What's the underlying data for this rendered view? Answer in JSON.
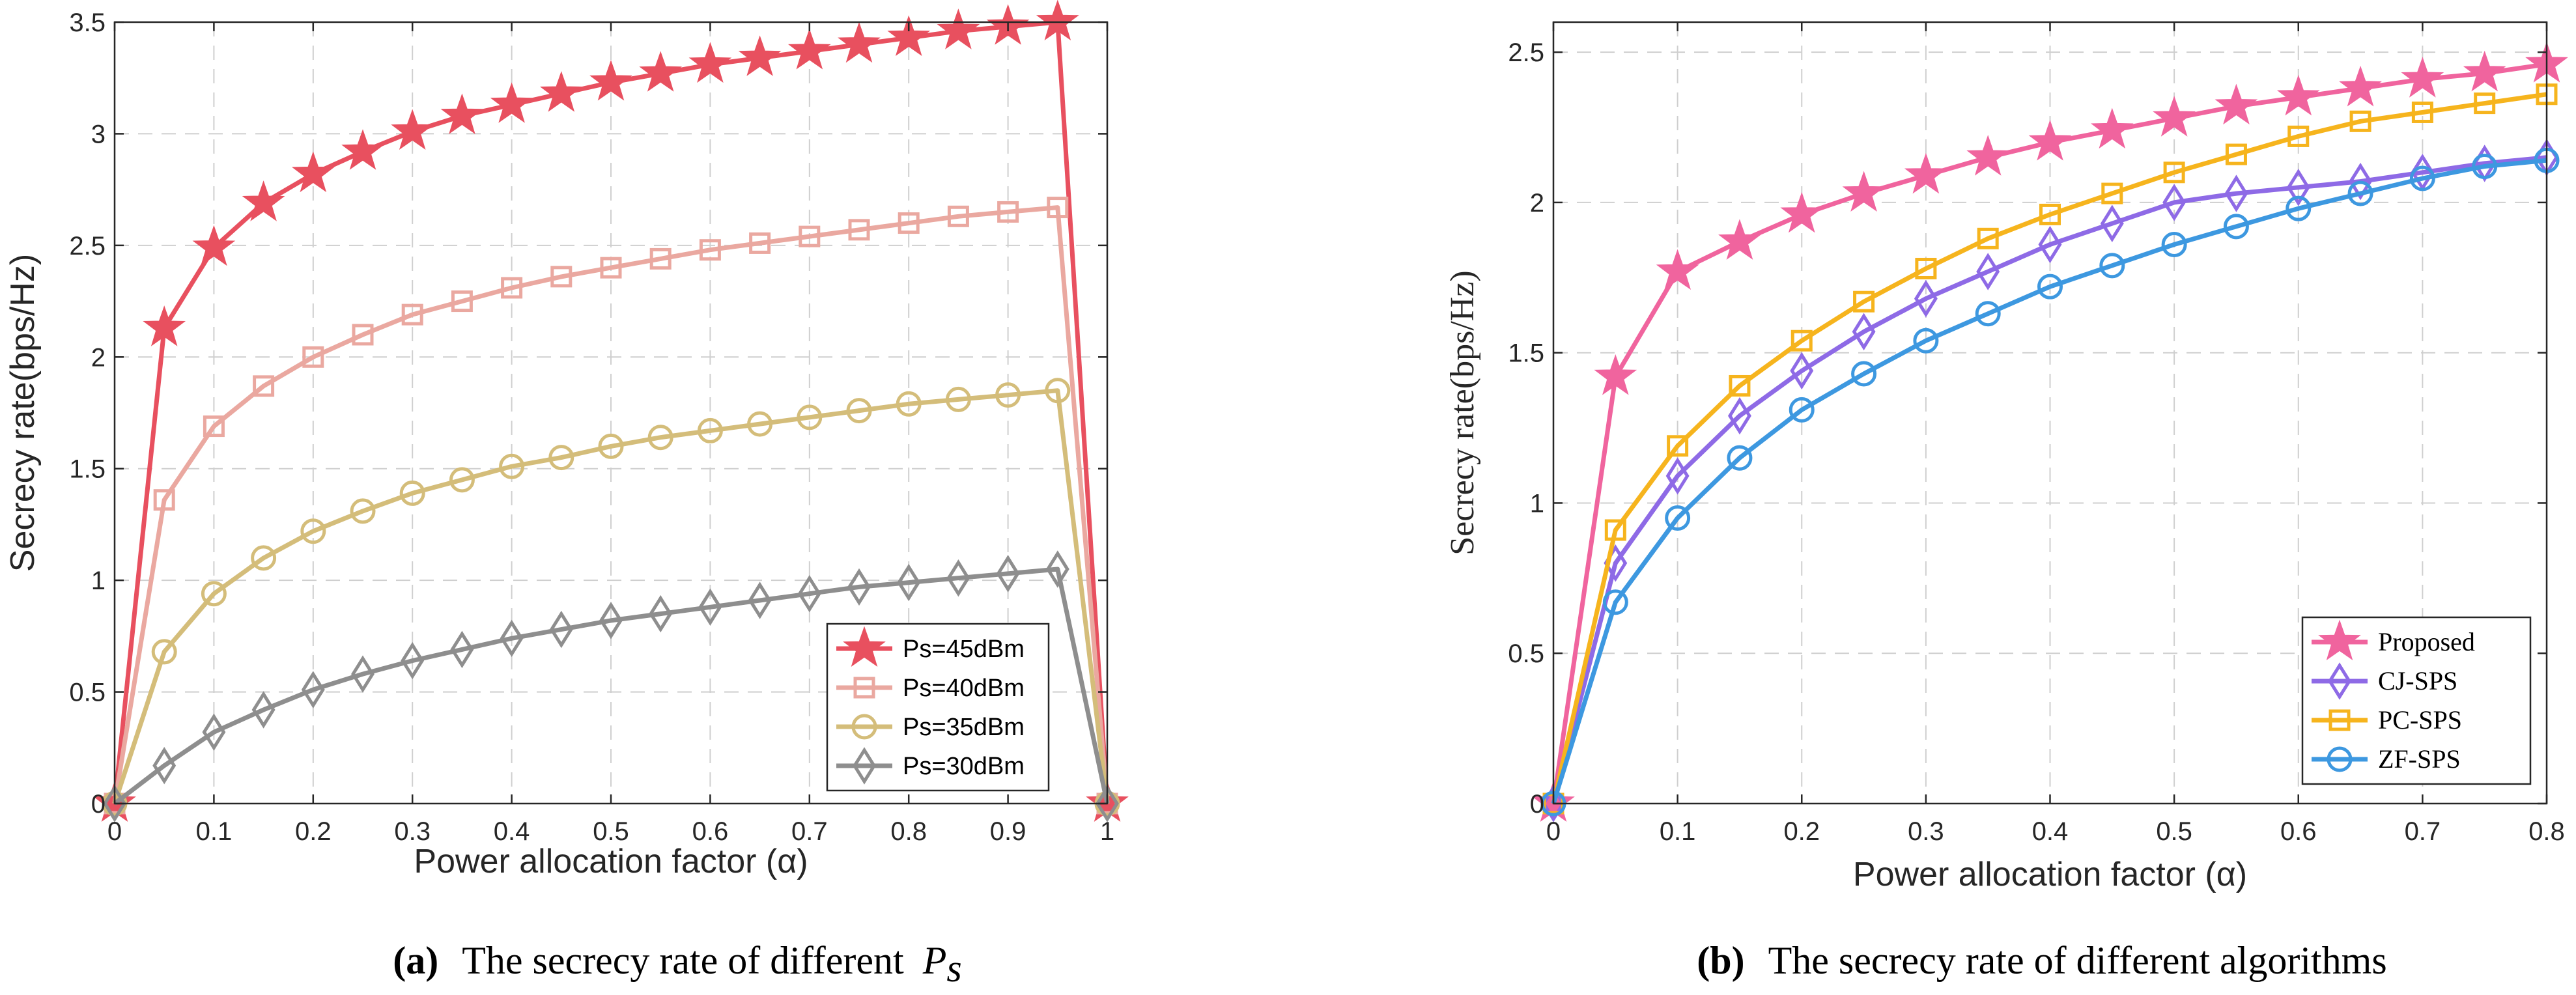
{
  "chart_data": [
    {
      "type": "line",
      "caption": {
        "label": "(a)",
        "text": "The secrecy rate of different",
        "math": "P",
        "math_sub": "s"
      },
      "xlabel": "Power allocation factor (α)",
      "ylabel": "Secrecy rate(bps/Hz)",
      "xlim": [
        0,
        1
      ],
      "ylim": [
        0,
        3.5
      ],
      "xticks": [
        0,
        0.1,
        0.2,
        0.3,
        0.4,
        0.5,
        0.6,
        0.7,
        0.8,
        0.9,
        1
      ],
      "xtick_labels": [
        "0",
        "0.1",
        "0.2",
        "0.3",
        "0.4",
        "0.5",
        "0.6",
        "0.7",
        "0.8",
        "0.9",
        "1"
      ],
      "yticks": [
        0,
        0.5,
        1,
        1.5,
        2,
        2.5,
        3,
        3.5
      ],
      "ytick_labels": [
        "0",
        "0.5",
        "1",
        "1.5",
        "2",
        "2.5",
        "3",
        "3.5"
      ],
      "grid": true,
      "legend_position": "bottom-right",
      "x": [
        0,
        0.05,
        0.1,
        0.15,
        0.2,
        0.25,
        0.3,
        0.35,
        0.4,
        0.45,
        0.5,
        0.55,
        0.6,
        0.65,
        0.7,
        0.75,
        0.8,
        0.85,
        0.9,
        0.95,
        1
      ],
      "series": [
        {
          "name": "Ps=45dBm",
          "marker": "star",
          "color": "#E8505F",
          "marker_fill": "#E8505F",
          "values": [
            0,
            2.13,
            2.49,
            2.69,
            2.82,
            2.92,
            3.01,
            3.08,
            3.13,
            3.18,
            3.23,
            3.27,
            3.31,
            3.34,
            3.37,
            3.4,
            3.43,
            3.46,
            3.48,
            3.5,
            0
          ]
        },
        {
          "name": "Ps=40dBm",
          "marker": "square",
          "color": "#EAA8A0",
          "marker_fill": "none",
          "values": [
            0,
            1.36,
            1.69,
            1.87,
            2.0,
            2.1,
            2.19,
            2.25,
            2.31,
            2.36,
            2.4,
            2.44,
            2.48,
            2.51,
            2.54,
            2.57,
            2.6,
            2.63,
            2.65,
            2.67,
            0
          ]
        },
        {
          "name": "Ps=35dBm",
          "marker": "circle",
          "color": "#D4BD7A",
          "marker_fill": "none",
          "values": [
            0,
            0.68,
            0.94,
            1.1,
            1.22,
            1.31,
            1.39,
            1.45,
            1.51,
            1.55,
            1.6,
            1.64,
            1.67,
            1.7,
            1.73,
            1.76,
            1.79,
            1.81,
            1.83,
            1.85,
            0
          ]
        },
        {
          "name": "Ps=30dBm",
          "marker": "diamond",
          "color": "#8E8E8E",
          "marker_fill": "none",
          "values": [
            0,
            0.17,
            0.32,
            0.42,
            0.51,
            0.58,
            0.64,
            0.69,
            0.74,
            0.78,
            0.82,
            0.85,
            0.88,
            0.91,
            0.94,
            0.97,
            0.99,
            1.01,
            1.03,
            1.05,
            0
          ]
        }
      ]
    },
    {
      "type": "line",
      "caption": {
        "label": "(b)",
        "text": "The secrecy rate of different algorithms"
      },
      "xlabel": "Power allocation factor (α)",
      "ylabel": "Secrecy rate(bps/Hz)",
      "xlim": [
        0,
        0.8
      ],
      "ylim": [
        0,
        2.6
      ],
      "xticks": [
        0,
        0.1,
        0.2,
        0.3,
        0.4,
        0.5,
        0.6,
        0.7,
        0.8
      ],
      "xtick_labels": [
        "0",
        "0.1",
        "0.2",
        "0.3",
        "0.4",
        "0.5",
        "0.6",
        "0.7",
        "0.8"
      ],
      "yticks": [
        0,
        0.5,
        1,
        1.5,
        2,
        2.5
      ],
      "ytick_labels": [
        "0",
        "0.5",
        "1",
        "1.5",
        "2",
        "2.5"
      ],
      "grid": true,
      "legend_position": "bottom-right",
      "x": [
        0,
        0.05,
        0.1,
        0.15,
        0.2,
        0.25,
        0.3,
        0.35,
        0.4,
        0.45,
        0.5,
        0.55,
        0.6,
        0.65,
        0.7,
        0.75,
        0.8
      ],
      "series": [
        {
          "name": "Proposed",
          "marker": "star",
          "color": "#F0649E",
          "marker_fill": "#F0649E",
          "values": [
            0,
            1.42,
            1.77,
            1.87,
            1.96,
            2.03,
            2.09,
            2.15,
            2.2,
            2.24,
            2.28,
            2.32,
            2.35,
            2.38,
            2.41,
            2.43,
            2.46
          ]
        },
        {
          "name": "CJ-SPS",
          "marker": "diamond",
          "color": "#8E6AE6",
          "marker_fill": "none",
          "values": [
            0,
            0.8,
            1.09,
            1.29,
            1.44,
            1.57,
            1.68,
            1.77,
            1.86,
            1.93,
            2.0,
            2.03,
            2.05,
            2.07,
            2.1,
            2.13,
            2.15
          ]
        },
        {
          "name": "PC-SPS",
          "marker": "square",
          "color": "#F6B41D",
          "marker_fill": "none",
          "values": [
            0,
            0.91,
            1.19,
            1.39,
            1.54,
            1.67,
            1.78,
            1.88,
            1.96,
            2.03,
            2.1,
            2.16,
            2.22,
            2.27,
            2.3,
            2.33,
            2.36
          ]
        },
        {
          "name": "ZF-SPS",
          "marker": "circle",
          "color": "#3D98E0",
          "marker_fill": "none",
          "values": [
            0,
            0.67,
            0.95,
            1.15,
            1.31,
            1.43,
            1.54,
            1.63,
            1.72,
            1.79,
            1.86,
            1.92,
            1.98,
            2.03,
            2.08,
            2.12,
            2.14
          ]
        }
      ]
    }
  ]
}
